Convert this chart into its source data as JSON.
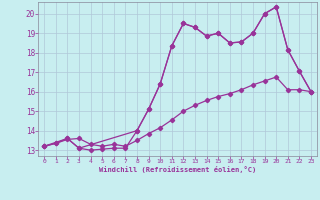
{
  "xlabel": "Windchill (Refroidissement éolien,°C)",
  "bg_color": "#c8eef0",
  "grid_color": "#b0c8d8",
  "line_color": "#993399",
  "xlim": [
    -0.5,
    23.5
  ],
  "ylim": [
    12.7,
    20.6
  ],
  "xticks": [
    0,
    1,
    2,
    3,
    4,
    5,
    6,
    7,
    8,
    9,
    10,
    11,
    12,
    13,
    14,
    15,
    16,
    17,
    18,
    19,
    20,
    21,
    22,
    23
  ],
  "yticks": [
    13,
    14,
    15,
    16,
    17,
    18,
    19,
    20
  ],
  "line1_x": [
    0,
    1,
    2,
    3,
    4,
    5,
    6,
    7,
    8,
    9,
    10,
    11,
    12,
    13,
    14,
    15,
    16,
    17,
    18,
    19,
    20,
    21,
    22,
    23
  ],
  "line1_y": [
    13.2,
    13.35,
    13.6,
    13.1,
    13.0,
    13.05,
    13.1,
    13.1,
    14.0,
    15.1,
    16.4,
    18.35,
    19.5,
    19.3,
    18.85,
    19.0,
    18.5,
    18.55,
    19.0,
    20.0,
    20.35,
    18.15,
    17.05,
    16.0
  ],
  "line2_x": [
    0,
    2,
    3,
    8,
    9,
    10,
    11,
    12,
    13,
    14,
    15,
    16,
    17,
    18,
    19,
    20,
    21,
    22,
    23
  ],
  "line2_y": [
    13.2,
    13.6,
    13.1,
    14.0,
    15.1,
    16.4,
    18.35,
    19.5,
    19.3,
    18.85,
    19.0,
    18.5,
    18.55,
    19.0,
    20.0,
    20.35,
    18.15,
    17.05,
    16.0
  ],
  "line3_x": [
    0,
    1,
    2,
    3,
    4,
    5,
    6,
    7,
    8,
    9,
    10,
    11,
    12,
    13,
    14,
    15,
    16,
    17,
    18,
    19,
    20,
    21,
    22,
    23
  ],
  "line3_y": [
    13.2,
    13.35,
    13.55,
    13.6,
    13.3,
    13.2,
    13.3,
    13.2,
    13.5,
    13.85,
    14.15,
    14.55,
    15.0,
    15.3,
    15.55,
    15.75,
    15.9,
    16.1,
    16.35,
    16.55,
    16.75,
    16.1,
    16.1,
    16.0
  ]
}
